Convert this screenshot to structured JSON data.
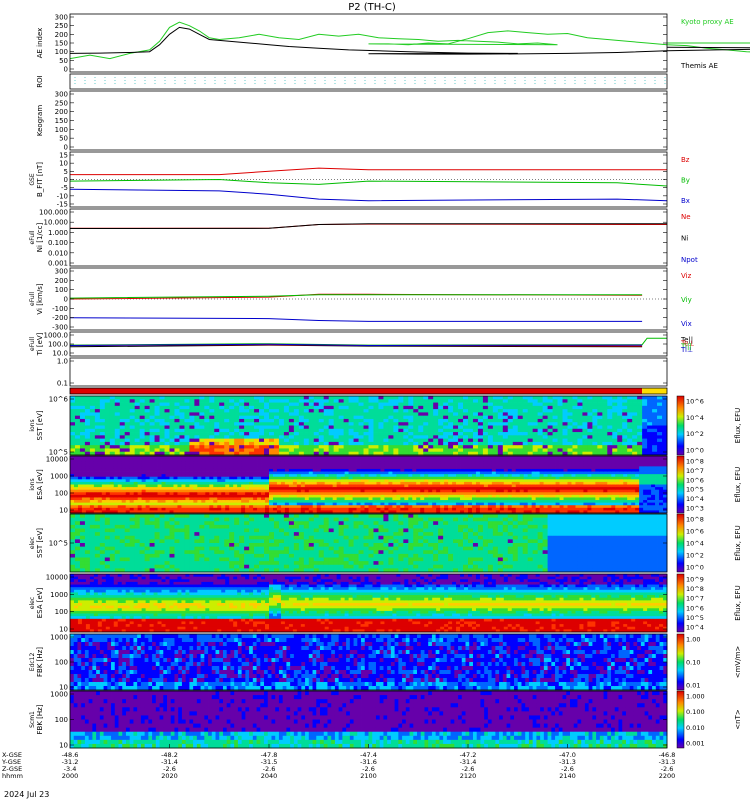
{
  "title": "P2 (TH-C)",
  "footer_date": "2024 Jul 23",
  "chart_data": [
    {
      "type": "line",
      "ylabel": "AE index",
      "yticks": [
        "300",
        "250",
        "200",
        "150",
        "100",
        "50",
        "0"
      ],
      "ylim": [
        0,
        300
      ],
      "series": [
        {
          "name": "Kyoto proxy AE",
          "color": "#22cc22",
          "points": [
            [
              2000,
              60
            ],
            [
              2004,
              80
            ],
            [
              2008,
              60
            ],
            [
              2012,
              90
            ],
            [
              2016,
              110
            ],
            [
              2018,
              160
            ],
            [
              2020,
              240
            ],
            [
              2022,
              270
            ],
            [
              2024,
              250
            ],
            [
              2026,
              220
            ],
            [
              2028,
              180
            ],
            [
              2030,
              170
            ],
            [
              2034,
              180
            ],
            [
              2038,
              200
            ],
            [
              2042,
              180
            ],
            [
              2046,
              170
            ],
            [
              2050,
              200
            ],
            [
              2054,
              190
            ],
            [
              2058,
              200
            ],
            [
              2062,
              180
            ],
            [
              2066,
              175
            ],
            [
              2070,
              170
            ],
            [
              2074,
              160
            ],
            [
              2078,
              165
            ],
            [
              2082,
              160
            ],
            [
              2086,
              155
            ],
            [
              2090,
              145
            ],
            [
              2094,
              150
            ],
            [
              2098,
              140
            ],
            [
              2100,
              145
            ],
            [
              2104,
              145
            ],
            [
              2108,
              140
            ],
            [
              2112,
              150
            ],
            [
              2116,
              145
            ],
            [
              2120,
              175
            ],
            [
              2124,
              210
            ],
            [
              2128,
              220
            ],
            [
              2132,
              210
            ],
            [
              2136,
              200
            ],
            [
              2140,
              205
            ],
            [
              2144,
              180
            ],
            [
              2148,
              170
            ],
            [
              2152,
              160
            ],
            [
              2156,
              150
            ],
            [
              2160,
              140
            ],
            [
              2164,
              135
            ],
            [
              2168,
              120
            ],
            [
              2172,
              110
            ],
            [
              2176,
              100
            ],
            [
              2180,
              95
            ],
            [
              2184,
              105
            ],
            [
              2188,
              110
            ],
            [
              2192,
              140
            ],
            [
              2196,
              150
            ],
            [
              2200,
              150
            ]
          ]
        },
        {
          "name": "Themis AE",
          "color": "#000000",
          "points": [
            [
              2000,
              90
            ],
            [
              2006,
              92
            ],
            [
              2012,
              95
            ],
            [
              2016,
              100
            ],
            [
              2018,
              140
            ],
            [
              2020,
              200
            ],
            [
              2022,
              240
            ],
            [
              2024,
              230
            ],
            [
              2026,
              200
            ],
            [
              2028,
              170
            ],
            [
              2032,
              160
            ],
            [
              2036,
              150
            ],
            [
              2040,
              140
            ],
            [
              2044,
              130
            ],
            [
              2050,
              120
            ],
            [
              2056,
              110
            ],
            [
              2062,
              105
            ],
            [
              2068,
              100
            ],
            [
              2074,
              95
            ],
            [
              2080,
              92
            ],
            [
              2090,
              90
            ],
            [
              2100,
              88
            ],
            [
              2110,
              86
            ],
            [
              2120,
              86
            ],
            [
              2130,
              87
            ],
            [
              2140,
              90
            ],
            [
              2150,
              95
            ],
            [
              2160,
              105
            ],
            [
              2170,
              110
            ],
            [
              2180,
              115
            ],
            [
              2190,
              120
            ],
            [
              2200,
              125
            ]
          ]
        }
      ]
    },
    {
      "type": "line",
      "ylabel": "ROI",
      "series": []
    },
    {
      "type": "heatmap",
      "ylabel": "Keogram",
      "yticks": [
        "300",
        "250",
        "200",
        "150",
        "100",
        "50",
        "0"
      ],
      "ylim": [
        0,
        300
      ]
    },
    {
      "type": "line",
      "ylabel": "B_FIT [nT]",
      "sublabel": "GSE",
      "yticks": [
        "15",
        "10",
        "5",
        "0",
        "-5",
        "-10",
        "-15"
      ],
      "ylim": [
        -15,
        15
      ],
      "series": [
        {
          "name": "Bz",
          "color": "#dd0000",
          "points": [
            [
              2000,
              3
            ],
            [
              2030,
              3
            ],
            [
              2040,
              5
            ],
            [
              2050,
              7
            ],
            [
              2100,
              6
            ],
            [
              2150,
              6
            ],
            [
              2200,
              6
            ]
          ]
        },
        {
          "name": "By",
          "color": "#00bb00",
          "points": [
            [
              2000,
              -1
            ],
            [
              2030,
              0
            ],
            [
              2040,
              -2
            ],
            [
              2050,
              -3
            ],
            [
              2100,
              -1
            ],
            [
              2150,
              -2
            ],
            [
              2200,
              -4
            ]
          ]
        },
        {
          "name": "Bx",
          "color": "#0000cc",
          "points": [
            [
              2000,
              -6
            ],
            [
              2030,
              -7
            ],
            [
              2040,
              -9
            ],
            [
              2050,
              -12
            ],
            [
              2100,
              -13
            ],
            [
              2150,
              -12
            ],
            [
              2200,
              -13
            ]
          ]
        }
      ]
    },
    {
      "type": "line",
      "ylabel": "Ni [1/cc]",
      "sublabel": "eFull",
      "scale": "log",
      "yticks": [
        "100.000",
        "10.000",
        "1.000",
        "0.100",
        "0.010",
        "0.001"
      ],
      "series": [
        {
          "name": "Ne",
          "color": "#dd0000",
          "points": [
            [
              2000,
              2.5
            ],
            [
              2040,
              2.6
            ],
            [
              2050,
              6
            ],
            [
              2100,
              6.5
            ],
            [
              2200,
              6
            ]
          ]
        },
        {
          "name": "Ni",
          "color": "#000000",
          "points": [
            [
              2000,
              2.4
            ],
            [
              2040,
              2.5
            ],
            [
              2050,
              6
            ],
            [
              2100,
              7
            ],
            [
              2200,
              7
            ]
          ]
        },
        {
          "name": "Npot",
          "color": "#0000cc",
          "points": []
        }
      ]
    },
    {
      "type": "line",
      "ylabel": "Vi [km/s]",
      "sublabel": "eFull",
      "yticks": [
        "300",
        "200",
        "100",
        "0",
        "-100",
        "-200",
        "-300"
      ],
      "ylim": [
        -300,
        300
      ],
      "series": [
        {
          "name": "Viz",
          "color": "#dd0000",
          "points": [
            [
              2000,
              0
            ],
            [
              2040,
              20
            ],
            [
              2050,
              50
            ],
            [
              2100,
              50
            ],
            [
              2155,
              40
            ]
          ]
        },
        {
          "name": "Viy",
          "color": "#00bb00",
          "points": [
            [
              2000,
              10
            ],
            [
              2040,
              30
            ],
            [
              2050,
              45
            ],
            [
              2100,
              45
            ],
            [
              2155,
              45
            ]
          ]
        },
        {
          "name": "Vix",
          "color": "#0000cc",
          "points": [
            [
              2000,
              -200
            ],
            [
              2040,
              -210
            ],
            [
              2050,
              -230
            ],
            [
              2100,
              -240
            ],
            [
              2155,
              -240
            ]
          ]
        }
      ]
    },
    {
      "type": "line",
      "ylabel": "Ti [eV]",
      "sublabel": "eFull",
      "scale": "log",
      "yticks": [
        "1000.0",
        "100.0",
        "10.0"
      ],
      "series": [
        {
          "name": "Te||",
          "color": "#000000",
          "points": [
            [
              2000,
              40
            ],
            [
              2040,
              70
            ],
            [
              2100,
              50
            ],
            [
              2155,
              40
            ]
          ]
        },
        {
          "name": "Te⊥",
          "color": "#dd0000",
          "points": [
            [
              2000,
              60
            ],
            [
              2040,
              80
            ],
            [
              2100,
              60
            ],
            [
              2155,
              50
            ]
          ]
        },
        {
          "name": "Ti||",
          "color": "#00bb00",
          "points": [
            [
              2000,
              70
            ],
            [
              2040,
              110
            ],
            [
              2100,
              70
            ],
            [
              2155,
              80
            ],
            [
              2156,
              700
            ],
            [
              2200,
              700
            ]
          ]
        },
        {
          "name": "Ti⊥",
          "color": "#0000cc",
          "points": [
            [
              2000,
              60
            ],
            [
              2040,
              90
            ],
            [
              2100,
              60
            ],
            [
              2155,
              70
            ]
          ]
        }
      ]
    },
    {
      "type": "line",
      "ylabel": "",
      "scale": "log",
      "yticks": [
        "1.0",
        "0.1"
      ]
    },
    {
      "type": "bar",
      "ylabel": "",
      "note": "mode bar"
    },
    {
      "type": "heatmap",
      "ylabel": "SST [eV]",
      "sublabel": "ions",
      "yticks": [
        "10^6",
        "10^5"
      ],
      "cbar_label": "Eflux, EFU",
      "cbar_ticks": [
        "10^6",
        "10^4",
        "10^2",
        "10^0"
      ]
    },
    {
      "type": "heatmap",
      "ylabel": "ESA [eV]",
      "sublabel": "ions",
      "yticks": [
        "10000",
        "1000",
        "100",
        "10"
      ],
      "cbar_label": "Eflux, EFU",
      "cbar_ticks": [
        "10^8",
        "10^7",
        "10^6",
        "10^5",
        "10^4",
        "10^3"
      ]
    },
    {
      "type": "heatmap",
      "ylabel": "SST [eV]",
      "sublabel": "elec",
      "yticks": [
        "10^5"
      ],
      "cbar_label": "Eflux, EFU",
      "cbar_ticks": [
        "10^8",
        "10^6",
        "10^4",
        "10^2",
        "10^0"
      ]
    },
    {
      "type": "heatmap",
      "ylabel": "ESA [eV]",
      "sublabel": "elec",
      "yticks": [
        "10000",
        "1000",
        "100",
        "10"
      ],
      "cbar_label": "Eflux, EFU",
      "cbar_ticks": [
        "10^9",
        "10^8",
        "10^7",
        "10^6",
        "10^5",
        "10^4"
      ]
    },
    {
      "type": "heatmap",
      "ylabel": "FBK [Hz]",
      "sublabel": "Edc12",
      "yticks": [
        "1000",
        "100",
        "10"
      ],
      "cbar_label": "<mV/m>",
      "cbar_ticks": [
        "1.00",
        "0.10",
        "0.01"
      ]
    },
    {
      "type": "heatmap",
      "ylabel": "FBK [Hz]",
      "sublabel": "Scm1",
      "yticks": [
        "1000",
        "100",
        "10"
      ],
      "cbar_label": "<nT>",
      "cbar_ticks": [
        "1.000",
        "0.100",
        "0.010",
        "0.001"
      ]
    }
  ],
  "xaxis": {
    "row_labels": [
      "X-GSE",
      "Y-GSE",
      "Z-GSE",
      "hhmm"
    ],
    "ticks": [
      {
        "time": 2000,
        "vals": [
          "-48.6",
          "-31.2",
          "-3.4",
          "2000"
        ]
      },
      {
        "time": 2020,
        "vals": [
          "-48.2",
          "-31.4",
          "-2.6",
          "2020"
        ]
      },
      {
        "time": 2040,
        "vals": [
          "-47.8",
          "-31.5",
          "-2.6",
          "2040"
        ]
      },
      {
        "time": 2100,
        "vals": [
          "-47.4",
          "-31.6",
          "-2.6",
          "2100"
        ]
      },
      {
        "time": 2120,
        "vals": [
          "-47.2",
          "-31.4",
          "-2.6",
          "2120"
        ]
      },
      {
        "time": 2140,
        "vals": [
          "-47.0",
          "-31.3",
          "-2.6",
          "2140"
        ]
      },
      {
        "time": 2200,
        "vals": [
          "-46.8",
          "-31.3",
          "-2.6",
          "2200"
        ]
      }
    ]
  }
}
